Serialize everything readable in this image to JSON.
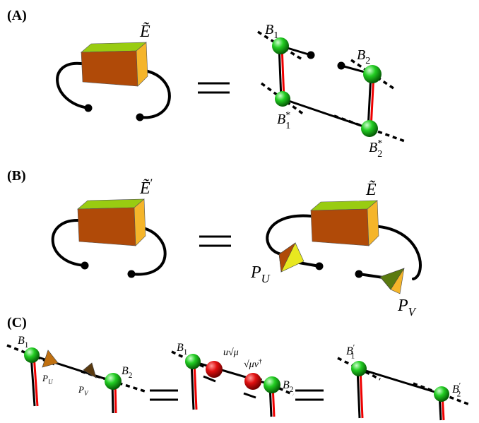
{
  "panel_a": {
    "label": "(A)",
    "tensor": {
      "base": "Ẽ"
    },
    "nodes": [
      {
        "base": "B",
        "sub": "1"
      },
      {
        "base": "B",
        "sub": "2"
      },
      {
        "base": "B",
        "sub": "1",
        "sup": "*"
      },
      {
        "base": "B",
        "sub": "2",
        "sup": "*"
      }
    ]
  },
  "panel_b": {
    "label": "(B)",
    "tensor_lhs": {
      "base": "Ẽ",
      "sup": "′"
    },
    "tensor_rhs": {
      "base": "Ẽ"
    },
    "projectors": [
      {
        "base": "P",
        "sub": "U"
      },
      {
        "base": "P",
        "sub": "V"
      }
    ]
  },
  "panel_c": {
    "label": "(C)",
    "left": [
      {
        "base": "B",
        "sub": "1"
      },
      {
        "base": "P",
        "sub": "U"
      },
      {
        "base": "P",
        "sub": "V"
      },
      {
        "base": "B",
        "sub": "2"
      }
    ],
    "middle": [
      {
        "base": "B",
        "sub": "1"
      },
      {
        "base": "u√μ"
      },
      {
        "base": "√μv",
        "sup": "†"
      },
      {
        "base": "B",
        "sub": "2"
      }
    ],
    "right": [
      {
        "base": "B",
        "sub": "1",
        "sup": "′"
      },
      {
        "base": "B",
        "sub": "2",
        "sup": "′"
      }
    ]
  }
}
